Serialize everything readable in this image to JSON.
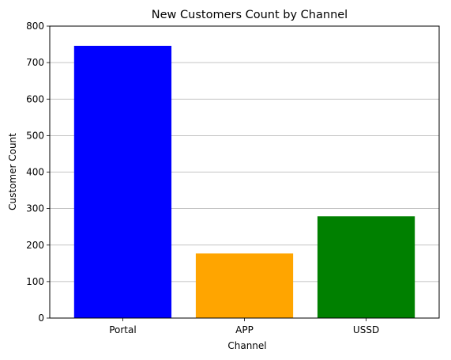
{
  "chart_data": {
    "type": "bar",
    "title": "New Customers Count by Channel",
    "xlabel": "Channel",
    "ylabel": "Customer Count",
    "categories": [
      "Portal",
      "APP",
      "USSD"
    ],
    "values": [
      746,
      177,
      279
    ],
    "colors": [
      "#0000ff",
      "#ffa500",
      "#008000"
    ],
    "ylim": [
      0,
      800
    ],
    "yticks": [
      0,
      100,
      200,
      300,
      400,
      500,
      600,
      700,
      800
    ],
    "grid": "y"
  }
}
